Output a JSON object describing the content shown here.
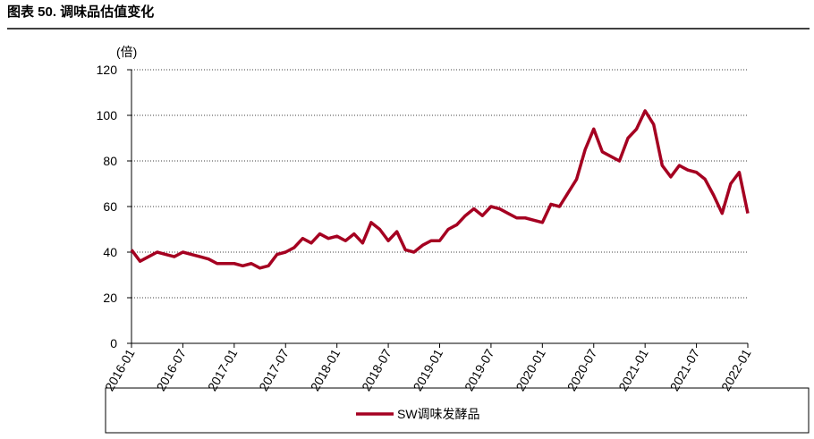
{
  "chart_data": {
    "type": "line",
    "title": "图表 50. 调味品估值变化",
    "y_axis_label": "(倍)",
    "x": [
      "2016-01",
      "2016-02",
      "2016-03",
      "2016-04",
      "2016-05",
      "2016-06",
      "2016-07",
      "2016-08",
      "2016-09",
      "2016-10",
      "2016-11",
      "2016-12",
      "2017-01",
      "2017-02",
      "2017-03",
      "2017-04",
      "2017-05",
      "2017-06",
      "2017-07",
      "2017-08",
      "2017-09",
      "2017-10",
      "2017-11",
      "2017-12",
      "2018-01",
      "2018-02",
      "2018-03",
      "2018-04",
      "2018-05",
      "2018-06",
      "2018-07",
      "2018-08",
      "2018-09",
      "2018-10",
      "2018-11",
      "2018-12",
      "2019-01",
      "2019-02",
      "2019-03",
      "2019-04",
      "2019-05",
      "2019-06",
      "2019-07",
      "2019-08",
      "2019-09",
      "2019-10",
      "2019-11",
      "2019-12",
      "2020-01",
      "2020-02",
      "2020-03",
      "2020-04",
      "2020-05",
      "2020-06",
      "2020-07",
      "2020-08",
      "2020-09",
      "2020-10",
      "2020-11",
      "2020-12",
      "2021-01",
      "2021-02",
      "2021-03",
      "2021-04",
      "2021-05",
      "2021-06",
      "2021-07",
      "2021-08",
      "2021-09",
      "2021-10",
      "2021-11",
      "2021-12",
      "2022-01"
    ],
    "series": [
      {
        "name": "SW调味发酵品",
        "color": "#a50021",
        "values": [
          41,
          36,
          38,
          40,
          39,
          38,
          40,
          39,
          38,
          37,
          35,
          35,
          35,
          34,
          35,
          33,
          34,
          39,
          40,
          42,
          46,
          44,
          48,
          46,
          47,
          45,
          48,
          44,
          53,
          50,
          45,
          49,
          41,
          40,
          43,
          45,
          45,
          50,
          52,
          56,
          59,
          56,
          60,
          59,
          57,
          55,
          55,
          54,
          53,
          61,
          60,
          66,
          72,
          85,
          94,
          84,
          82,
          80,
          90,
          94,
          102,
          96,
          78,
          73,
          78,
          76,
          75,
          72,
          65,
          57,
          70,
          75,
          57
        ]
      }
    ],
    "xticks": [
      "2016-01",
      "2016-07",
      "2017-01",
      "2017-07",
      "2018-01",
      "2018-07",
      "2019-01",
      "2019-07",
      "2020-01",
      "2020-07",
      "2021-01",
      "2021-07",
      "2022-01"
    ],
    "ylim": [
      0,
      120
    ],
    "yticks": [
      0,
      20,
      40,
      60,
      80,
      100,
      120
    ],
    "grid": true
  }
}
